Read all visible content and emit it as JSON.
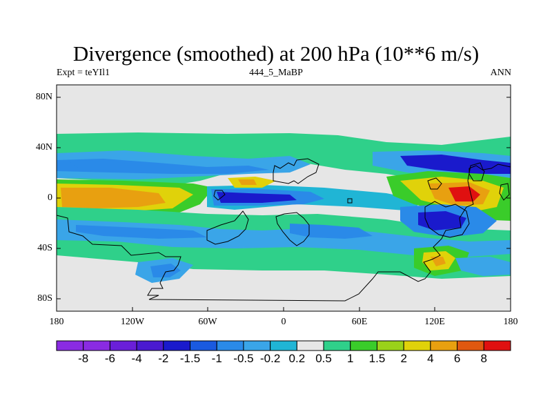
{
  "title": "Divergence (smoothed) at 200 hPa (10**6 m/s)",
  "subtitle_left": "Expt = teYIl1",
  "subtitle_center": "444_5_MaBP",
  "subtitle_right": "ANN",
  "y_ticks": [
    "80N",
    "40N",
    "0",
    "40S",
    "80S"
  ],
  "x_ticks": [
    "180",
    "120W",
    "60W",
    "0",
    "60E",
    "120E",
    "180"
  ],
  "colorbar": {
    "labels": [
      "-8",
      "-6",
      "-4",
      "-2",
      "-1.5",
      "-1",
      "-0.5",
      "-0.2",
      "0.2",
      "0.5",
      "1",
      "1.5",
      "2",
      "4",
      "6",
      "8"
    ],
    "colors": [
      "#8a2be2",
      "#6a1fd9",
      "#4a1ad0",
      "#1a1acc",
      "#1a5ae0",
      "#2a8ae8",
      "#3aa5e8",
      "#20b5d5",
      "#e6e6e6",
      "#2fd08a",
      "#3acc2a",
      "#9ad21a",
      "#e0d20a",
      "#e8a010",
      "#e05810",
      "#e01010"
    ]
  },
  "field_colors": {
    "land_bg": "#e6e6e6",
    "green": "#2fd08a",
    "lime": "#3acc2a",
    "yellow_green": "#9ad21a",
    "yellow": "#e0d20a",
    "orange": "#e8a010",
    "red_orange": "#e05810",
    "red": "#e01010",
    "cyan": "#20b5d5",
    "light_blue": "#3aa5e8",
    "mid_blue": "#2a8ae8",
    "blue": "#1a5ae0",
    "dark_blue": "#1a1acc"
  }
}
